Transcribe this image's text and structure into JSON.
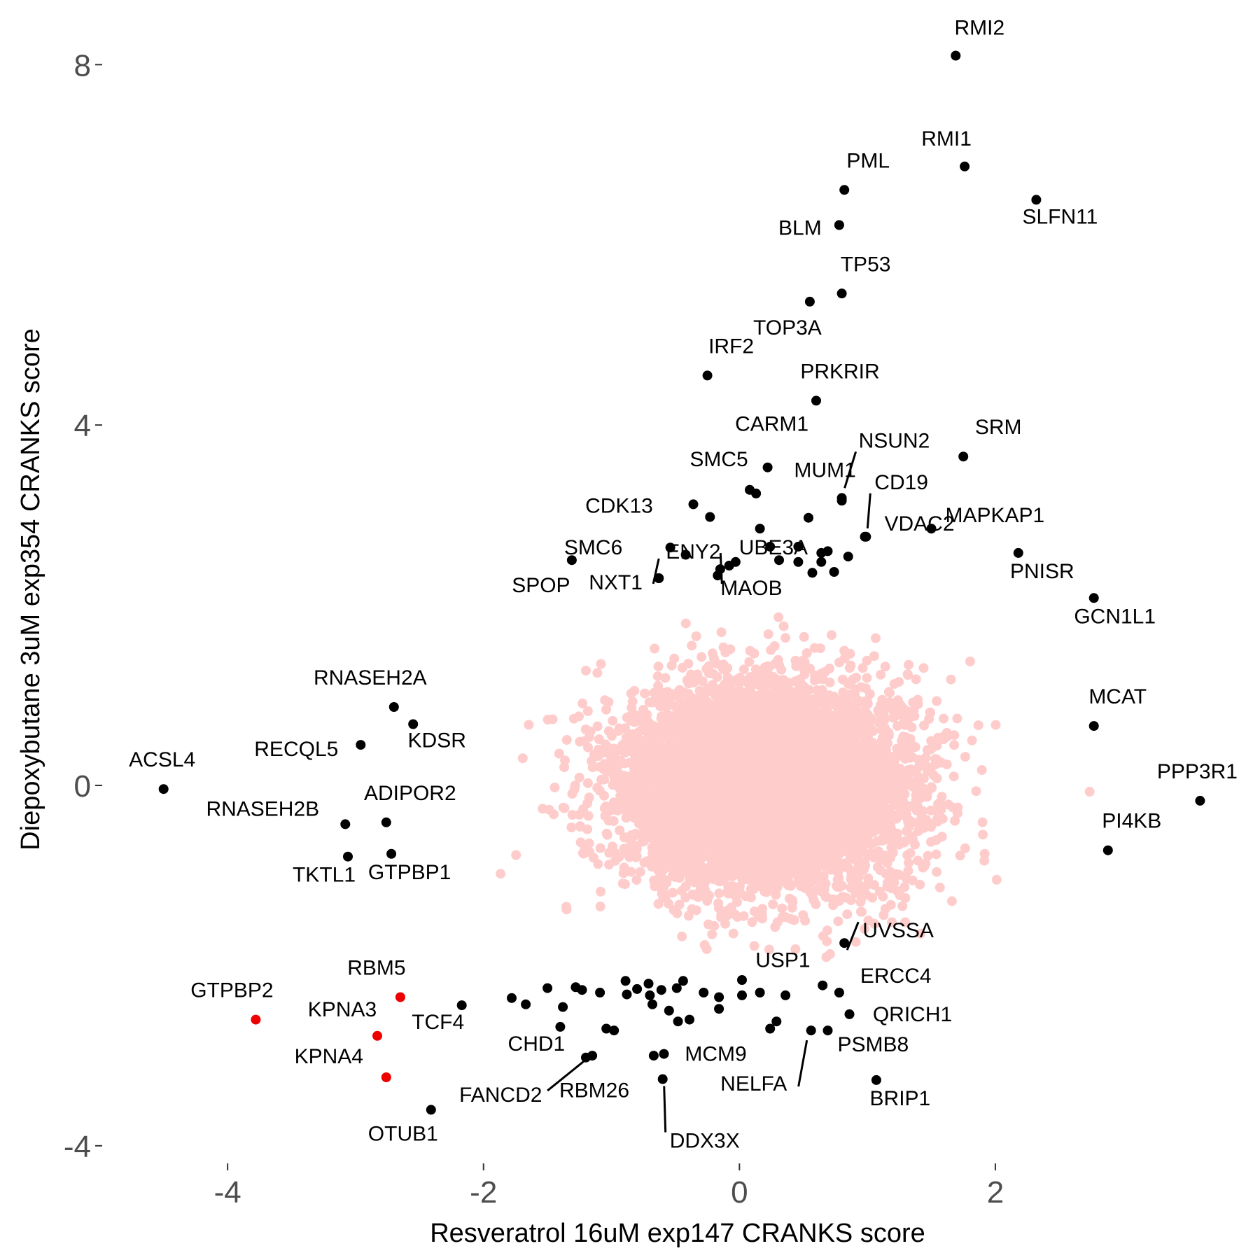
{
  "chart_data": {
    "type": "scatter",
    "title": "",
    "xlabel": "Resveratrol 16uM exp147 CRANKS score",
    "ylabel": "Diepoxybutane 3uM exp354 CRANKS score",
    "xlim": [
      -4.98,
      3.74
    ],
    "ylim": [
      -4.18,
      8.5
    ],
    "x_ticks": [
      -4,
      -2,
      0,
      2
    ],
    "x_tick_labels": [
      "-4",
      "-2",
      "0",
      "2"
    ],
    "y_ticks": [
      -4,
      0,
      4,
      8
    ],
    "y_tick_labels": [
      "-4",
      "0",
      "4",
      "8"
    ],
    "grid": false,
    "legend": "none",
    "colors": {
      "background": "#ffcccc",
      "highlight": "#000000",
      "special": "#ee0000",
      "text": "#000000",
      "ticks": "#4d4d4d"
    },
    "background_cloud": {
      "description_free": true,
      "center": [
        0.2,
        0.0
      ],
      "sd": [
        0.55,
        0.55
      ],
      "count": 7000,
      "seed": 7
    },
    "series": [
      {
        "points": [
          {
            "label": "RMI2",
            "x": 1.69,
            "y": 8.1
          },
          {
            "label": "RMI1",
            "x": 1.76,
            "y": 6.87
          },
          {
            "label": "PML",
            "x": 0.82,
            "y": 6.61
          },
          {
            "label": "SLFN11",
            "x": 2.32,
            "y": 6.5
          },
          {
            "label": "BLM",
            "x": 0.78,
            "y": 6.22
          },
          {
            "label": "TP53",
            "x": 0.8,
            "y": 5.46
          },
          {
            "label": "TOP3A",
            "x": 0.55,
            "y": 5.37
          },
          {
            "label": "IRF2",
            "x": -0.25,
            "y": 4.55
          },
          {
            "label": "PRKRIR",
            "x": 0.6,
            "y": 4.27
          },
          {
            "label": "SRM",
            "x": 1.75,
            "y": 3.65
          },
          {
            "label": "CARM1",
            "x": 0.22,
            "y": 3.53
          },
          {
            "label": "MUM1",
            "x": 0.8,
            "y": 3.19
          },
          {
            "label": "SMC5",
            "x": 0.08,
            "y": 3.28
          },
          {
            "label": "CDK13",
            "x": -0.36,
            "y": 3.12
          },
          {
            "label": "VDAC2",
            "x": 0.98,
            "y": 2.76
          },
          {
            "label": "MAPKAP1",
            "x": 1.5,
            "y": 2.85
          },
          {
            "label": "SMC6",
            "x": -0.54,
            "y": 2.64
          },
          {
            "label": "UBE3A",
            "x": -0.08,
            "y": 2.44
          },
          {
            "label": "SPOP",
            "x": -1.31,
            "y": 2.5
          },
          {
            "label": "PNISR",
            "x": 2.18,
            "y": 2.58
          },
          {
            "label": "GCN1L1",
            "x": 2.77,
            "y": 2.08
          },
          {
            "label": "MCAT",
            "x": 2.77,
            "y": 0.66
          },
          {
            "label": "RNASEH2A",
            "x": -2.7,
            "y": 0.87
          },
          {
            "label": "RECQL5",
            "x": -2.96,
            "y": 0.45
          },
          {
            "label": "KDSR",
            "x": -2.55,
            "y": 0.68
          },
          {
            "label": "ACSL4",
            "x": -4.5,
            "y": -0.04
          },
          {
            "label": "PPP3R1",
            "x": 3.6,
            "y": -0.17
          },
          {
            "label": "RNASEH2B",
            "x": -3.08,
            "y": -0.43
          },
          {
            "label": "ADIPOR2",
            "x": -2.76,
            "y": -0.41
          },
          {
            "label": "PI4KB",
            "x": 2.88,
            "y": -0.72
          },
          {
            "label": "TKTL1",
            "x": -3.06,
            "y": -0.79
          },
          {
            "label": "GTPBP1",
            "x": -2.72,
            "y": -0.76
          },
          {
            "label": "TCF4",
            "x": -2.17,
            "y": -2.44
          },
          {
            "label": "CHD1",
            "x": -1.4,
            "y": -2.68
          },
          {
            "label": "MCM9",
            "x": -0.59,
            "y": -2.98
          },
          {
            "label": "QRICH1",
            "x": 0.86,
            "y": -2.54
          },
          {
            "label": "BRIP1",
            "x": 1.07,
            "y": -3.27
          },
          {
            "label": "OTUB1",
            "x": -2.41,
            "y": -3.6
          },
          {
            "label": "FANCD2",
            "x": -1.15,
            "y": -3.0
          },
          {
            "label": "RBM26",
            "x": -1.2,
            "y": -3.02
          },
          {
            "label": "DDX3X",
            "x": -0.6,
            "y": -3.26
          },
          {
            "label": "NELFA",
            "x": 0.56,
            "y": -2.72
          },
          {
            "label": "PSMB8",
            "x": 0.69,
            "y": -2.72
          },
          {
            "label": "USP1",
            "x": 0.65,
            "y": -2.22
          },
          {
            "label": "ERCC4",
            "x": 0.78,
            "y": -2.3
          },
          {
            "label": "UVSSA",
            "x": 0.82,
            "y": -1.75
          },
          {
            "label": "NSUN2",
            "x": 0.8,
            "y": 3.16
          },
          {
            "label": "CD19",
            "x": 0.99,
            "y": 2.76
          },
          {
            "label": "ENY2",
            "x": -0.63,
            "y": 2.3
          },
          {
            "label": "NXT1",
            "x": -0.63,
            "y": 2.3
          },
          {
            "label": "MAOB",
            "x": -0.17,
            "y": 2.33
          },
          {
            "label": "",
            "x": -0.23,
            "y": 2.98
          },
          {
            "label": "",
            "x": 0.13,
            "y": 3.24
          },
          {
            "label": "",
            "x": 0.16,
            "y": 2.85
          },
          {
            "label": "",
            "x": 0.24,
            "y": 2.65
          },
          {
            "label": "",
            "x": 0.31,
            "y": 2.5
          },
          {
            "label": "",
            "x": 0.46,
            "y": 2.65
          },
          {
            "label": "",
            "x": 0.54,
            "y": 2.97
          },
          {
            "label": "",
            "x": 0.46,
            "y": 2.48
          },
          {
            "label": "",
            "x": 0.57,
            "y": 2.36
          },
          {
            "label": "",
            "x": 0.64,
            "y": 2.58
          },
          {
            "label": "",
            "x": 0.64,
            "y": 2.48
          },
          {
            "label": "",
            "x": 0.69,
            "y": 2.6
          },
          {
            "label": "",
            "x": 0.74,
            "y": 2.37
          },
          {
            "label": "",
            "x": 0.85,
            "y": 2.54
          },
          {
            "label": "",
            "x": -0.42,
            "y": 2.56
          },
          {
            "label": "",
            "x": -0.15,
            "y": 2.4
          },
          {
            "label": "",
            "x": -0.03,
            "y": 2.48
          },
          {
            "label": "",
            "x": -1.78,
            "y": -2.36
          },
          {
            "label": "",
            "x": -1.67,
            "y": -2.43
          },
          {
            "label": "",
            "x": -1.5,
            "y": -2.25
          },
          {
            "label": "",
            "x": -1.38,
            "y": -2.46
          },
          {
            "label": "",
            "x": -1.28,
            "y": -2.24
          },
          {
            "label": "",
            "x": -1.23,
            "y": -2.27
          },
          {
            "label": "",
            "x": -1.09,
            "y": -2.3
          },
          {
            "label": "",
            "x": -1.04,
            "y": -2.7
          },
          {
            "label": "",
            "x": -0.98,
            "y": -2.72
          },
          {
            "label": "",
            "x": -0.89,
            "y": -2.17
          },
          {
            "label": "",
            "x": -0.88,
            "y": -2.32
          },
          {
            "label": "",
            "x": -0.8,
            "y": -2.26
          },
          {
            "label": "",
            "x": -0.71,
            "y": -2.2
          },
          {
            "label": "",
            "x": -0.7,
            "y": -2.33
          },
          {
            "label": "",
            "x": -0.68,
            "y": -2.43
          },
          {
            "label": "",
            "x": -0.61,
            "y": -2.27
          },
          {
            "label": "",
            "x": -0.55,
            "y": -2.5
          },
          {
            "label": "",
            "x": -0.49,
            "y": -2.25
          },
          {
            "label": "",
            "x": -0.48,
            "y": -2.62
          },
          {
            "label": "",
            "x": -0.44,
            "y": -2.17
          },
          {
            "label": "",
            "x": -0.39,
            "y": -2.6
          },
          {
            "label": "",
            "x": -0.28,
            "y": -2.3
          },
          {
            "label": "",
            "x": -0.16,
            "y": -2.35
          },
          {
            "label": "",
            "x": -0.16,
            "y": -2.48
          },
          {
            "label": "",
            "x": 0.02,
            "y": -2.16
          },
          {
            "label": "",
            "x": 0.02,
            "y": -2.33
          },
          {
            "label": "",
            "x": 0.16,
            "y": -2.3
          },
          {
            "label": "",
            "x": 0.24,
            "y": -2.7
          },
          {
            "label": "",
            "x": 0.29,
            "y": -2.62
          },
          {
            "label": "",
            "x": 0.36,
            "y": -2.33
          },
          {
            "label": "",
            "x": -0.67,
            "y": -3.0
          }
        ]
      },
      {
        "points": [
          {
            "label": "RBM5",
            "x": -2.65,
            "y": -2.35
          },
          {
            "label": "GTPBP2",
            "x": -3.78,
            "y": -2.6
          },
          {
            "label": "KPNA3",
            "x": -2.83,
            "y": -2.78
          },
          {
            "label": "KPNA4",
            "x": -2.76,
            "y": -3.24
          }
        ]
      }
    ]
  }
}
